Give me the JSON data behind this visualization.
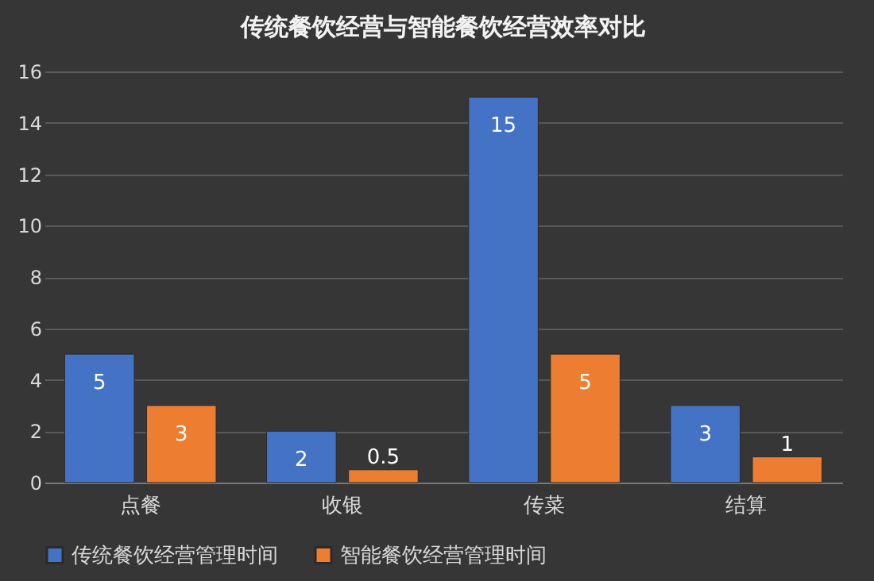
{
  "chart_data": {
    "type": "bar",
    "title": "传统餐饮经营与智能餐饮经营效率对比",
    "categories": [
      "点餐",
      "收银",
      "传菜",
      "结算"
    ],
    "series": [
      {
        "name": "传统餐饮经营管理时间",
        "color": "#4472c4",
        "values": [
          5,
          2,
          15,
          3
        ]
      },
      {
        "name": "智能餐饮经营管理时间",
        "color": "#ed7d31",
        "values": [
          3,
          0.5,
          5,
          1
        ]
      }
    ],
    "ylim": [
      0,
      16
    ],
    "yticks": [
      0,
      2,
      4,
      6,
      8,
      10,
      12,
      14,
      16
    ],
    "grid": "y",
    "legend": "bottom",
    "data_labels": true
  }
}
